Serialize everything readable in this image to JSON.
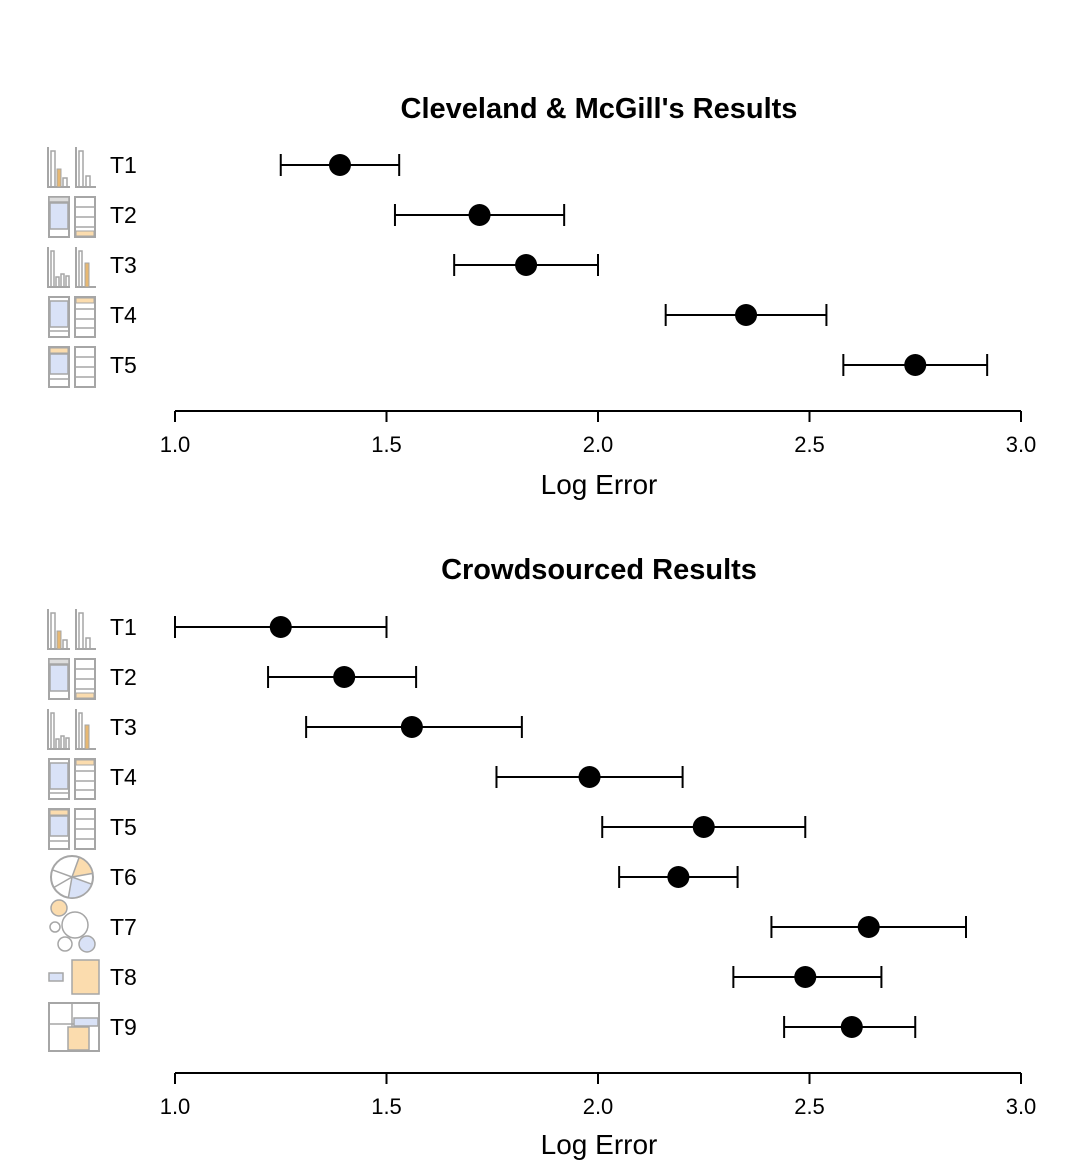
{
  "chart_data": [
    {
      "type": "scatter",
      "title": "Cleveland & McGill's Results",
      "xlabel": "Log Error",
      "ylabel": "",
      "xlim": [
        1.0,
        3.0
      ],
      "x_ticks": [
        "1.0",
        "1.5",
        "2.0",
        "2.5",
        "3.0"
      ],
      "error_bars": true,
      "categories": [
        "T1",
        "T2",
        "T3",
        "T4",
        "T5"
      ],
      "points": [
        {
          "label": "T1",
          "value": 1.39,
          "lower": 1.25,
          "upper": 1.53,
          "icon": "grouped-bar-icon"
        },
        {
          "label": "T2",
          "value": 1.72,
          "lower": 1.52,
          "upper": 1.92,
          "icon": "stacked-bar-icon"
        },
        {
          "label": "T3",
          "value": 1.83,
          "lower": 1.66,
          "upper": 2.0,
          "icon": "grouped-bar-icon"
        },
        {
          "label": "T4",
          "value": 2.35,
          "lower": 2.16,
          "upper": 2.54,
          "icon": "stacked-bar-icon"
        },
        {
          "label": "T5",
          "value": 2.75,
          "lower": 2.58,
          "upper": 2.92,
          "icon": "stacked-bar-icon"
        }
      ]
    },
    {
      "type": "scatter",
      "title": "Crowdsourced Results",
      "xlabel": "Log Error",
      "ylabel": "",
      "xlim": [
        1.0,
        3.0
      ],
      "x_ticks": [
        "1.0",
        "1.5",
        "2.0",
        "2.5",
        "3.0"
      ],
      "error_bars": true,
      "categories": [
        "T1",
        "T2",
        "T3",
        "T4",
        "T5",
        "T6",
        "T7",
        "T8",
        "T9"
      ],
      "points": [
        {
          "label": "T1",
          "value": 1.25,
          "lower": 1.0,
          "upper": 1.5,
          "icon": "grouped-bar-icon"
        },
        {
          "label": "T2",
          "value": 1.4,
          "lower": 1.22,
          "upper": 1.57,
          "icon": "stacked-bar-icon"
        },
        {
          "label": "T3",
          "value": 1.56,
          "lower": 1.31,
          "upper": 1.82,
          "icon": "grouped-bar-icon"
        },
        {
          "label": "T4",
          "value": 1.98,
          "lower": 1.76,
          "upper": 2.2,
          "icon": "stacked-bar-icon"
        },
        {
          "label": "T5",
          "value": 2.25,
          "lower": 2.01,
          "upper": 2.49,
          "icon": "stacked-bar-icon"
        },
        {
          "label": "T6",
          "value": 2.19,
          "lower": 2.05,
          "upper": 2.33,
          "icon": "pie-chart-icon"
        },
        {
          "label": "T7",
          "value": 2.64,
          "lower": 2.41,
          "upper": 2.87,
          "icon": "bubble-chart-icon"
        },
        {
          "label": "T8",
          "value": 2.49,
          "lower": 2.32,
          "upper": 2.67,
          "icon": "area-square-icon"
        },
        {
          "label": "T9",
          "value": 2.6,
          "lower": 2.44,
          "upper": 2.75,
          "icon": "treemap-icon"
        }
      ]
    }
  ],
  "colors": {
    "ink": "#000000",
    "icon_stroke": "#a6a6a6",
    "icon_blue": "#d9e2f7",
    "icon_orange": "#fbdcae",
    "icon_orange_bar": "#e7b873"
  }
}
